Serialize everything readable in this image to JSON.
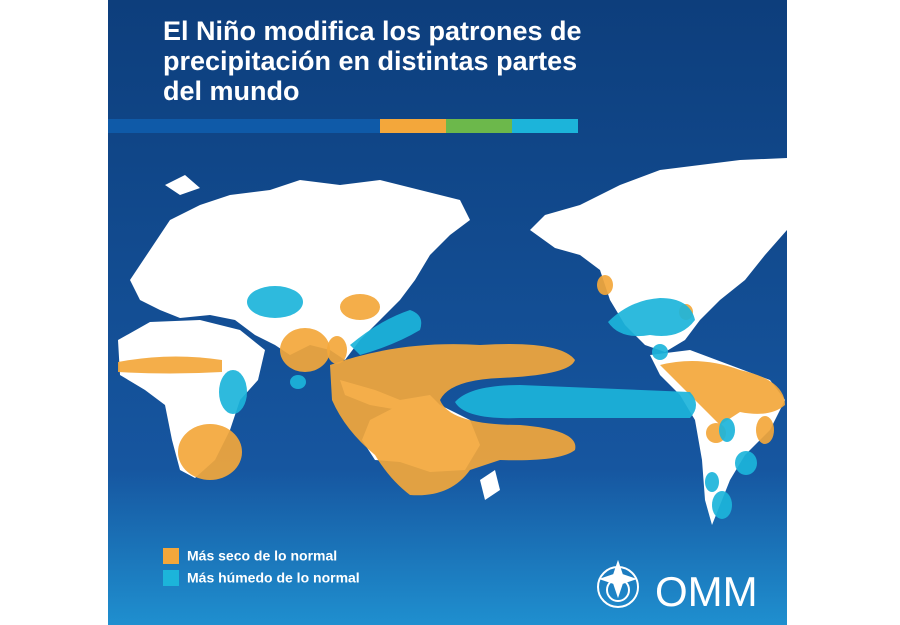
{
  "title": [
    "El Niño modifica los patrones de",
    "precipitación en distintas partes",
    "del mundo"
  ],
  "legend": [
    {
      "label": "Más seco de lo normal",
      "color": "#f3a73b"
    },
    {
      "label": "Más húmedo de lo normal",
      "color": "#1cb4da"
    }
  ],
  "logo": "OMM"
}
